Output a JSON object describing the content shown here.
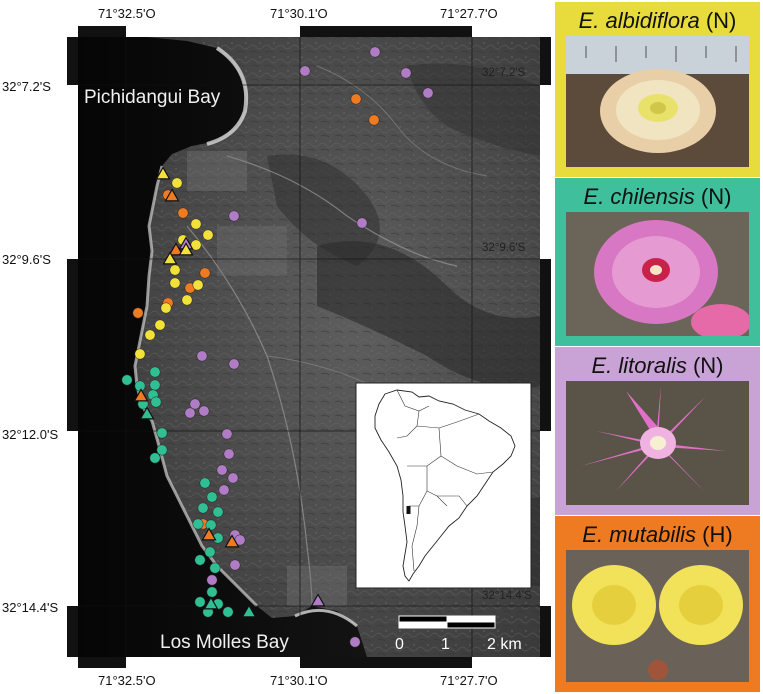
{
  "coords": {
    "top_lon": [
      "71°32.5'O",
      "71°30.1'O",
      "71°27.7'O"
    ],
    "bottom_lon": [
      "71°32.5'O",
      "71°30.1'O",
      "71°27.7'O"
    ],
    "left_lat": [
      "32°7.2'S",
      "32°9.6'S",
      "32°12.0'S",
      "32°14.4'S"
    ],
    "inner_lat": [
      "32°7.2'S",
      "32°9.6'S",
      "32°14.4'S"
    ]
  },
  "bays": {
    "north": "Pichidangui Bay",
    "south": "Los Molles Bay"
  },
  "scale_bar": {
    "labels": [
      "0",
      "1",
      "2 km"
    ]
  },
  "species": [
    {
      "name": "E. albidiflora",
      "code": "(N)",
      "color": "#e8dc3c"
    },
    {
      "name": "E. chilensis",
      "code": "(N)",
      "color": "#3fbf9b"
    },
    {
      "name": "E. litoralis",
      "code": "(N)",
      "color": "#c9a3d6"
    },
    {
      "name": "E. mutabilis",
      "code": "(H)",
      "color": "#ee7a22"
    }
  ],
  "marker_colors": {
    "yellow": "#f2e13a",
    "orange": "#ee7a22",
    "teal": "#2fbf93",
    "purple": "#b07cc6"
  }
}
